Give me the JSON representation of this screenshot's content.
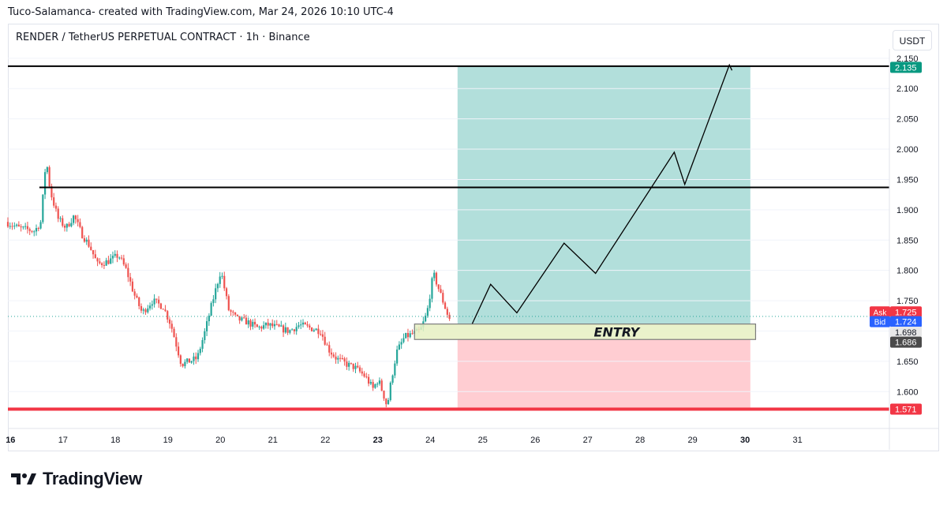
{
  "caption": "Tuco-Salamanca- created with TradingView.com, Mar 24, 2026 10:10 UTC-4",
  "symbol_title": "RENDER / TetherUS PERPETUAL CONTRACT · 1h · Binance",
  "currency_button": "USDT",
  "brand": "TradingView",
  "colors": {
    "up": "#26a69a",
    "down": "#ef5350",
    "profit_zone": "#b2dfdb",
    "loss_zone": "#ffcdd2",
    "entry_box": "#e6f0c2",
    "support_line": "#f23645",
    "ask": "#f23645",
    "bid": "#2962ff",
    "label_teal": "#089981",
    "label_dark": "#4a4a4a"
  },
  "chart_data": {
    "type": "candlestick",
    "ylim": [
      1.56,
      2.155
    ],
    "y_ticks": [
      "1.600",
      "1.650",
      "1.700",
      "1.750",
      "1.800",
      "1.850",
      "1.900",
      "1.950",
      "2.000",
      "2.050",
      "2.100",
      "2.150"
    ],
    "x_ticks": [
      {
        "day": 16,
        "label": "16",
        "bold": true
      },
      {
        "day": 17,
        "label": "17"
      },
      {
        "day": 18,
        "label": "18"
      },
      {
        "day": 19,
        "label": "19"
      },
      {
        "day": 20,
        "label": "20"
      },
      {
        "day": 21,
        "label": "21"
      },
      {
        "day": 22,
        "label": "22"
      },
      {
        "day": 23,
        "label": "23",
        "bold": true
      },
      {
        "day": 24,
        "label": "24"
      },
      {
        "day": 25,
        "label": "25"
      },
      {
        "day": 26,
        "label": "26"
      },
      {
        "day": 27,
        "label": "27"
      },
      {
        "day": 28,
        "label": "28"
      },
      {
        "day": 29,
        "label": "29"
      },
      {
        "day": 30,
        "label": "30",
        "bold": true
      },
      {
        "day": 31,
        "label": "31"
      }
    ],
    "x_range_days": [
      15.95,
      32.75
    ],
    "candle_range_days": [
      15.95,
      24.4
    ],
    "price_path": [
      [
        15.95,
        1.88
      ],
      [
        16.2,
        1.87
      ],
      [
        16.5,
        1.865
      ],
      [
        16.62,
        1.88
      ],
      [
        16.72,
        1.985
      ],
      [
        16.8,
        1.93
      ],
      [
        16.95,
        1.885
      ],
      [
        17.1,
        1.87
      ],
      [
        17.25,
        1.89
      ],
      [
        17.4,
        1.86
      ],
      [
        17.55,
        1.84
      ],
      [
        17.7,
        1.81
      ],
      [
        17.9,
        1.815
      ],
      [
        18.1,
        1.825
      ],
      [
        18.25,
        1.8
      ],
      [
        18.4,
        1.76
      ],
      [
        18.55,
        1.73
      ],
      [
        18.75,
        1.75
      ],
      [
        18.95,
        1.74
      ],
      [
        19.1,
        1.71
      ],
      [
        19.3,
        1.645
      ],
      [
        19.45,
        1.65
      ],
      [
        19.6,
        1.655
      ],
      [
        19.75,
        1.7
      ],
      [
        19.88,
        1.745
      ],
      [
        20.05,
        1.8
      ],
      [
        20.2,
        1.735
      ],
      [
        20.35,
        1.72
      ],
      [
        20.55,
        1.715
      ],
      [
        20.75,
        1.705
      ],
      [
        20.95,
        1.71
      ],
      [
        21.15,
        1.705
      ],
      [
        21.35,
        1.7
      ],
      [
        21.55,
        1.71
      ],
      [
        21.75,
        1.705
      ],
      [
        21.95,
        1.7
      ],
      [
        22.1,
        1.67
      ],
      [
        22.25,
        1.655
      ],
      [
        22.45,
        1.645
      ],
      [
        22.6,
        1.64
      ],
      [
        22.8,
        1.625
      ],
      [
        22.95,
        1.605
      ],
      [
        23.05,
        1.62
      ],
      [
        23.15,
        1.595
      ],
      [
        23.22,
        1.575
      ],
      [
        23.3,
        1.62
      ],
      [
        23.4,
        1.665
      ],
      [
        23.55,
        1.69
      ],
      [
        23.7,
        1.695
      ],
      [
        23.85,
        1.7
      ],
      [
        23.98,
        1.73
      ],
      [
        24.1,
        1.795
      ],
      [
        24.2,
        1.77
      ],
      [
        24.3,
        1.745
      ],
      [
        24.4,
        1.72
      ]
    ],
    "horizontal_levels": [
      {
        "price": 2.137,
        "from_day": 15.95,
        "to_day": 32.75,
        "color": "#000000"
      },
      {
        "price": 1.937,
        "from_day": 16.55,
        "to_day": 32.75,
        "color": "#000000"
      },
      {
        "price": 1.571,
        "from_day": 15.95,
        "to_day": 32.75,
        "color": "#f23645"
      }
    ],
    "position": {
      "from_day": 24.52,
      "to_day": 30.1,
      "target": 2.137,
      "entry_top": 1.7115,
      "entry_bottom": 1.686,
      "stop": 1.571
    },
    "entry_zone": {
      "from_day": 23.7,
      "to_day": 30.2,
      "top": 1.7115,
      "bottom": 1.686,
      "label": "ENTRY"
    },
    "projection_path": [
      [
        24.8,
        1.712
      ],
      [
        25.15,
        1.777
      ],
      [
        25.65,
        1.73
      ],
      [
        26.55,
        1.845
      ],
      [
        27.15,
        1.795
      ],
      [
        28.65,
        1.995
      ],
      [
        28.85,
        1.942
      ],
      [
        29.7,
        2.139
      ],
      [
        29.75,
        2.13
      ]
    ],
    "last_price_line": 1.724,
    "price_labels": [
      {
        "tag": "",
        "value": "2.135",
        "price": 2.135,
        "color": "#089981"
      },
      {
        "tag": "Ask",
        "value": "1.725",
        "price": 1.7315,
        "color": "#f23645"
      },
      {
        "tag": "Bid",
        "value": "1.724",
        "price": 1.7155,
        "color": "#2962ff"
      },
      {
        "tag": "",
        "value": "1.698",
        "price": 1.698,
        "color": "#e8e8e8",
        "text_color": "#131722"
      },
      {
        "tag": "",
        "value": "1.686",
        "price": 1.6815,
        "color": "#4a4a4a"
      },
      {
        "tag": "",
        "value": "1.571",
        "price": 1.571,
        "color": "#f23645"
      }
    ]
  }
}
